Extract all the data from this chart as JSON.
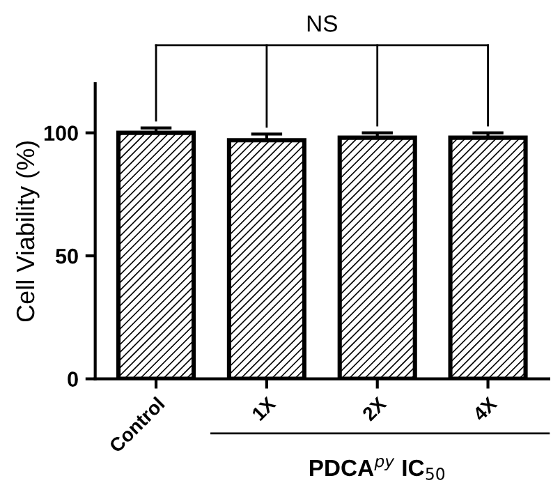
{
  "chart_data": {
    "type": "bar",
    "categories": [
      "Control",
      "1X",
      "2X",
      "4X"
    ],
    "values": [
      100,
      97,
      98,
      98
    ],
    "errors": [
      2,
      2.5,
      2,
      2
    ],
    "color": "#000000",
    "ylabel": "Cell Viability (%)",
    "xlabel": "PDCA$^{py}$ IC$_{50}$",
    "annotations": [
      "NS"
    ],
    "ylim": [
      0,
      120
    ],
    "yticks": [
      0,
      50,
      100
    ],
    "grid": false,
    "legend": false
  }
}
